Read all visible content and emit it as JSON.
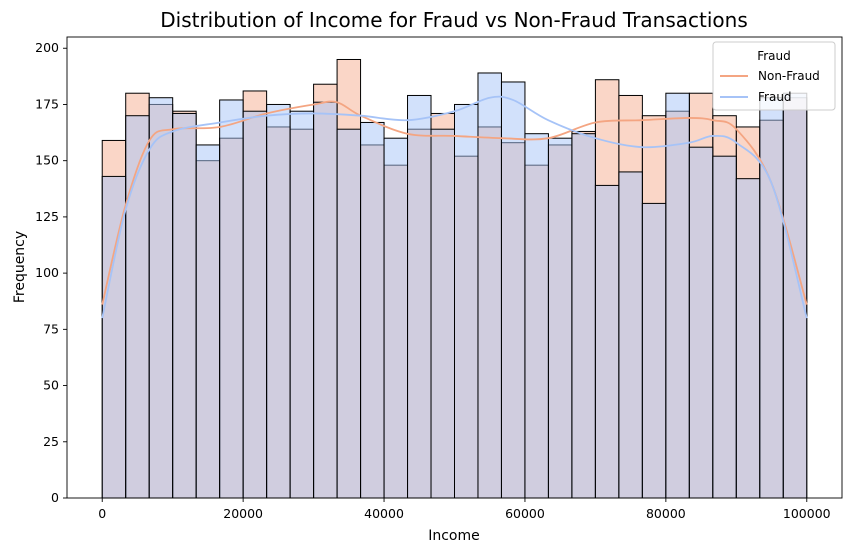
{
  "chart_data": {
    "type": "histogram",
    "title": "Distribution of Income for Fraud vs Non-Fraud Transactions",
    "xlabel": "Income",
    "ylabel": "Frequency",
    "xlim": [
      -5000,
      105000
    ],
    "ylim": [
      0,
      205
    ],
    "x_ticks": [
      0,
      20000,
      40000,
      60000,
      80000,
      100000
    ],
    "y_ticks": [
      0,
      25,
      50,
      75,
      100,
      125,
      150,
      175,
      200
    ],
    "bin_edges": [
      0,
      3333.33,
      6666.67,
      10000,
      13333.33,
      16666.67,
      20000,
      23333.33,
      26666.67,
      30000,
      33333.33,
      36666.67,
      40000,
      43333.33,
      46666.67,
      50000,
      53333.33,
      56666.67,
      60000,
      63333.33,
      66666.67,
      70000,
      73333.33,
      76666.67,
      80000,
      83333.33,
      86666.67,
      90000,
      93333.33,
      96666.67,
      100000
    ],
    "legend": {
      "title": "Fraud",
      "position": "top-right"
    },
    "series": [
      {
        "name": "Non-Fraud",
        "fill_color": "#f4a582",
        "line_color": "#f4a582",
        "counts": [
          159,
          180,
          175,
          172,
          150,
          160,
          181,
          165,
          164,
          184,
          195,
          157,
          148,
          164,
          171,
          152,
          165,
          158,
          148,
          157,
          163,
          186,
          179,
          170,
          172,
          180,
          170,
          165,
          168,
          178
        ],
        "kde": [
          [
            0,
            86
          ],
          [
            3300,
            130
          ],
          [
            6700,
            159
          ],
          [
            10000,
            164
          ],
          [
            16700,
            165
          ],
          [
            23300,
            171
          ],
          [
            30000,
            175
          ],
          [
            33300,
            176
          ],
          [
            36700,
            170
          ],
          [
            43300,
            162
          ],
          [
            50000,
            161
          ],
          [
            56700,
            160
          ],
          [
            63300,
            160
          ],
          [
            70000,
            167
          ],
          [
            76700,
            168
          ],
          [
            83300,
            169
          ],
          [
            86700,
            168
          ],
          [
            90000,
            164
          ],
          [
            95000,
            140
          ],
          [
            100000,
            86
          ]
        ]
      },
      {
        "name": "Fraud",
        "fill_color": "#a6c3f7",
        "line_color": "#a6c3f7",
        "counts": [
          143,
          170,
          178,
          171,
          157,
          177,
          172,
          175,
          172,
          176,
          164,
          167,
          160,
          179,
          164,
          175,
          189,
          185,
          162,
          160,
          162,
          139,
          145,
          131,
          180,
          156,
          152,
          142,
          178,
          180
        ],
        "kde": [
          [
            0,
            80
          ],
          [
            3300,
            128
          ],
          [
            6700,
            155
          ],
          [
            10000,
            163
          ],
          [
            16700,
            167
          ],
          [
            23300,
            170
          ],
          [
            30000,
            171
          ],
          [
            36700,
            170
          ],
          [
            43300,
            168
          ],
          [
            50000,
            172
          ],
          [
            55000,
            178
          ],
          [
            58300,
            177
          ],
          [
            63300,
            168
          ],
          [
            70000,
            160
          ],
          [
            76700,
            156
          ],
          [
            83300,
            158
          ],
          [
            86700,
            161
          ],
          [
            90000,
            158
          ],
          [
            95000,
            140
          ],
          [
            100000,
            80
          ]
        ]
      }
    ]
  }
}
